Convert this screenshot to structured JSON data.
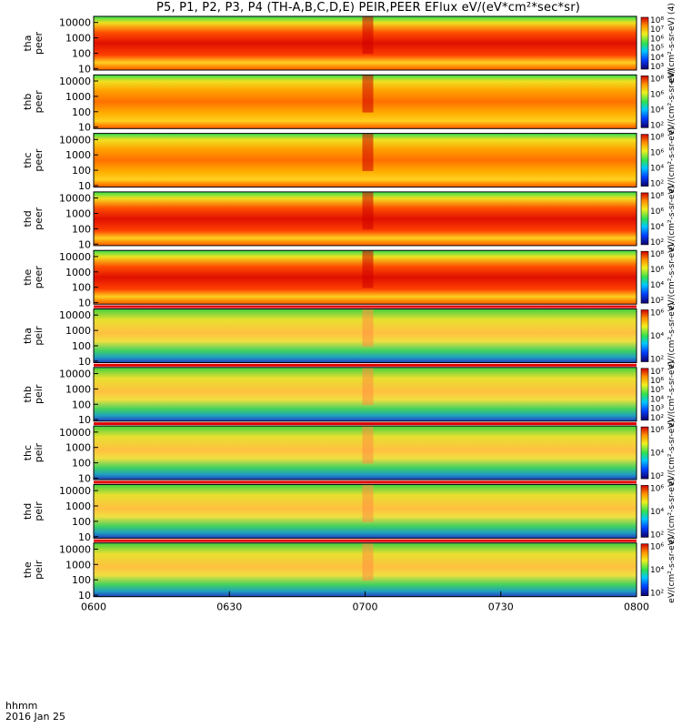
{
  "title": "P5, P1, P2, P3, P4 (TH-A,B,C,D,E) PEIR,PEER EFlux eV/(eV*cm²*sec*sr)",
  "footer": {
    "hhmm": "hhmm",
    "date": "2016 Jan 25"
  },
  "colors": {
    "low": "#1a0080",
    "mid": "#30d050",
    "high": "#d01010"
  },
  "chart_data": {
    "type": "heatmap",
    "x_ticks": [
      "0600",
      "0630",
      "0700",
      "0730",
      "0800"
    ],
    "y_ticks": [
      "10000",
      "1000",
      "100",
      "10"
    ],
    "ylim": [
      8,
      25000
    ],
    "y_scale": "log",
    "panels": [
      {
        "id": "tha-peer",
        "ylabel": [
          "tha",
          "peer"
        ],
        "species": "electron",
        "intensity": 0.85,
        "cbar_ticks": [
          "10⁸",
          "10⁷",
          "10⁶",
          "10⁵",
          "10⁴",
          "10³"
        ],
        "cbar_label": "eV/(cm²-s-sr-eV) (4)"
      },
      {
        "id": "thb-peer",
        "ylabel": [
          "thb",
          "peer"
        ],
        "species": "electron",
        "intensity": 0.55,
        "cbar_ticks": [
          "10⁸",
          "10⁶",
          "10⁴",
          "10²"
        ],
        "cbar_label": "eV/(cm²-s-sr-eV)"
      },
      {
        "id": "thc-peer",
        "ylabel": [
          "thc",
          "peer"
        ],
        "species": "electron",
        "intensity": 0.45,
        "cbar_ticks": [
          "10⁸",
          "10⁶",
          "10⁴",
          "10²"
        ],
        "cbar_label": "eV/(cm²-s-sr-eV)"
      },
      {
        "id": "thd-peer",
        "ylabel": [
          "thd",
          "peer"
        ],
        "species": "electron",
        "intensity": 0.8,
        "cbar_ticks": [
          "10⁸",
          "10⁶",
          "10⁴",
          "10²"
        ],
        "cbar_label": "eV/(cm²-s-sr-eV)"
      },
      {
        "id": "the-peer",
        "ylabel": [
          "the",
          "peer"
        ],
        "species": "electron",
        "intensity": 0.8,
        "cbar_ticks": [
          "10⁸",
          "10⁶",
          "10⁴",
          "10²"
        ],
        "cbar_label": "eV/(cm²-s-sr-eV)"
      },
      {
        "id": "tha-peir",
        "ylabel": [
          "tha",
          "peir"
        ],
        "species": "ion",
        "intensity": 0.6,
        "cbar_ticks": [
          "10⁶",
          "10⁴",
          "10²"
        ],
        "cbar_label": "eV/(cm²-s-sr-eV)"
      },
      {
        "id": "thb-peir",
        "ylabel": [
          "thb",
          "peir"
        ],
        "species": "ion",
        "intensity": 0.5,
        "cbar_ticks": [
          "10⁷",
          "10⁶",
          "10⁵",
          "10⁴",
          "10³",
          "10²"
        ],
        "cbar_label": "eV/(cm²-s-sr-eV)"
      },
      {
        "id": "thc-peir",
        "ylabel": [
          "thc",
          "peir"
        ],
        "species": "ion",
        "intensity": 0.5,
        "cbar_ticks": [
          "10⁶",
          "10⁴",
          "10²"
        ],
        "cbar_label": "eV/(cm²-s-sr-eV)"
      },
      {
        "id": "thd-peir",
        "ylabel": [
          "thd",
          "peir"
        ],
        "species": "ion",
        "intensity": 0.55,
        "cbar_ticks": [
          "10⁶",
          "10⁴",
          "10²"
        ],
        "cbar_label": "eV/(cm²-s-sr-eV)"
      },
      {
        "id": "the-peir",
        "ylabel": [
          "the",
          "peir"
        ],
        "species": "ion",
        "intensity": 0.6,
        "cbar_ticks": [
          "10⁶",
          "10⁴",
          "10²"
        ],
        "cbar_label": "eV/(cm²-s-sr-eV)"
      }
    ]
  }
}
